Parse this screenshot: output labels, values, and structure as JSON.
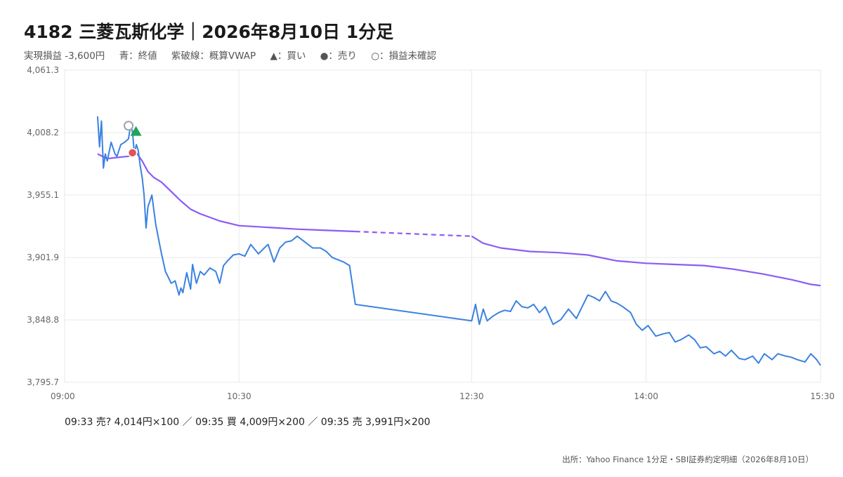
{
  "header": {
    "title": "4182 三菱瓦斯化学｜2026年8月10日 1分足",
    "legend_items": [
      "実現損益 -3,600円",
      "青：終値",
      "紫破線：概算VWAP",
      "▲：買い",
      "●：売り",
      "○：損益未確認"
    ]
  },
  "chart_data": {
    "type": "line",
    "xlabel": "",
    "ylabel": "",
    "x_ticks": [
      "09:00",
      "10:30",
      "12:30",
      "14:00",
      "15:30"
    ],
    "y_ticks": [
      "4,061.3",
      "4,008.2",
      "3,955.1",
      "3,901.9",
      "3,848.8",
      "3,795.7"
    ],
    "xlim": [
      "09:00",
      "15:30"
    ],
    "ylim": [
      3795.7,
      4061.3
    ],
    "grid": true,
    "colors": {
      "close": "#3b82e0",
      "vwap": "#8b5cf6",
      "buy": "#22a35a",
      "sell": "#e05555",
      "unconfirmed": "#9aa4b2"
    },
    "series": [
      {
        "id": "close",
        "x": [
          "09:17",
          "09:18",
          "09:19",
          "09:20",
          "09:21",
          "09:22",
          "09:24",
          "09:26",
          "09:27",
          "09:29",
          "09:31",
          "09:33",
          "09:34",
          "09:35",
          "09:36",
          "09:37",
          "09:38",
          "09:39",
          "09:40",
          "09:41",
          "09:42",
          "09:43",
          "09:45",
          "09:47",
          "09:50",
          "09:52",
          "09:55",
          "09:57",
          "09:59",
          "10:00",
          "10:01",
          "10:03",
          "10:05",
          "10:06",
          "10:08",
          "10:10",
          "10:12",
          "10:15",
          "10:18",
          "10:20",
          "10:22",
          "10:24",
          "10:27",
          "10:30",
          "10:33",
          "10:36",
          "10:40",
          "10:43",
          "10:45",
          "10:48",
          "10:51",
          "10:54",
          "10:57",
          "11:00",
          "11:04",
          "11:08",
          "11:12",
          "11:15",
          "11:18",
          "11:21",
          "11:24",
          "11:27",
          "11:30",
          "12:30",
          "12:32",
          "12:34",
          "12:36",
          "12:38",
          "12:41",
          "12:44",
          "12:47",
          "12:50",
          "12:53",
          "12:56",
          "12:59",
          "13:02",
          "13:05",
          "13:08",
          "13:12",
          "13:16",
          "13:20",
          "13:24",
          "13:27",
          "13:30",
          "13:33",
          "13:36",
          "13:39",
          "13:42",
          "13:45",
          "13:48",
          "13:52",
          "13:55",
          "13:58",
          "14:01",
          "14:05",
          "14:09",
          "14:12",
          "14:15",
          "14:18",
          "14:22",
          "14:25",
          "14:28",
          "14:31",
          "14:35",
          "14:38",
          "14:41",
          "14:44",
          "14:48",
          "14:51",
          "14:55",
          "14:58",
          "15:01",
          "15:05",
          "15:08",
          "15:12",
          "15:15",
          "15:18",
          "15:22",
          "15:25",
          "15:28",
          "15:30"
        ],
        "values": [
          4022,
          3996,
          4018,
          3978,
          3990,
          3984,
          4000,
          3990,
          3988,
          3998,
          4000,
          4003,
          4014,
          4009,
          3990,
          3998,
          3993,
          3980,
          3970,
          3955,
          3927,
          3945,
          3955,
          3930,
          3905,
          3890,
          3880,
          3882,
          3870,
          3876,
          3872,
          3889,
          3875,
          3896,
          3880,
          3890,
          3887,
          3893,
          3890,
          3880,
          3895,
          3899,
          3904,
          3905,
          3903,
          3913,
          3905,
          3910,
          3913,
          3898,
          3910,
          3915,
          3916,
          3920,
          3915,
          3910,
          3910,
          3907,
          3902,
          3900,
          3898,
          3895,
          3862,
          3848,
          3862,
          3845,
          3858,
          3848,
          3852,
          3855,
          3857,
          3856,
          3865,
          3860,
          3859,
          3862,
          3855,
          3860,
          3845,
          3849,
          3858,
          3850,
          3860,
          3870,
          3868,
          3865,
          3873,
          3865,
          3863,
          3860,
          3855,
          3845,
          3840,
          3844,
          3835,
          3837,
          3838,
          3830,
          3832,
          3836,
          3832,
          3825,
          3826,
          3820,
          3822,
          3818,
          3823,
          3816,
          3815,
          3818,
          3812,
          3820,
          3815,
          3820,
          3818,
          3817,
          3815,
          3813,
          3820,
          3815,
          3810
        ]
      },
      {
        "id": "vwap",
        "x": [
          "09:17",
          "09:22",
          "09:27",
          "09:33",
          "09:37",
          "09:40",
          "09:43",
          "09:46",
          "09:50",
          "09:55",
          "10:00",
          "10:05",
          "10:10",
          "10:15",
          "10:20",
          "10:25",
          "10:30",
          "10:40",
          "10:50",
          "11:00",
          "11:15",
          "11:30",
          "11:45",
          "12:00",
          "12:15",
          "12:30",
          "12:36",
          "12:45",
          "13:00",
          "13:15",
          "13:30",
          "13:45",
          "14:00",
          "14:15",
          "14:30",
          "14:45",
          "15:00",
          "15:15",
          "15:25",
          "15:30"
        ],
        "values": [
          3990,
          3986,
          3987,
          3988,
          3991,
          3984,
          3975,
          3970,
          3966,
          3958,
          3950,
          3943,
          3939,
          3936,
          3933,
          3931,
          3929,
          3928,
          3927,
          3926,
          3925,
          3924,
          3923,
          3922,
          3921,
          3920,
          3914,
          3910,
          3907,
          3906,
          3904,
          3899,
          3897,
          3896,
          3895,
          3892,
          3888,
          3883,
          3879,
          3878
        ]
      }
    ],
    "trade_markers": [
      {
        "time": "09:33",
        "price": 4014,
        "type": "unconfirmed"
      },
      {
        "time": "09:35",
        "price": 4009,
        "type": "buy"
      },
      {
        "time": "09:35",
        "price": 3991,
        "type": "sell"
      }
    ]
  },
  "trades_text": "09:33 売? 4,014円×100 ／ 09:35 買 4,009円×200 ／ 09:35 売 3,991円×200",
  "source_text": "出所：Yahoo Finance 1分足・SBI証券約定明細（2026年8月10日）"
}
